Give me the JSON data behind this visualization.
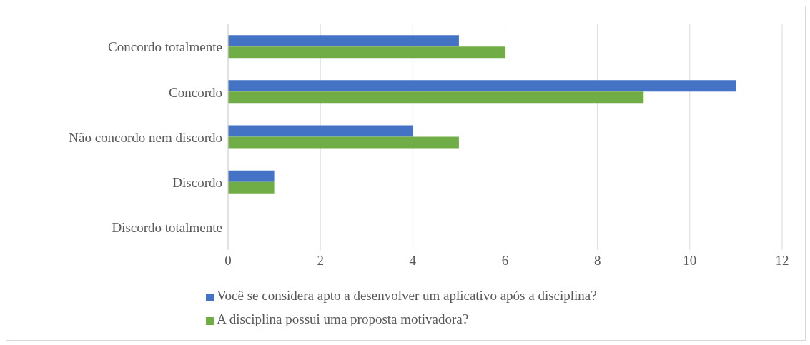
{
  "chart_data": {
    "type": "bar",
    "orientation": "horizontal",
    "categories": [
      "Concordo totalmente",
      "Concordo",
      "Não concordo nem discordo",
      "Discordo",
      "Discordo totalmente"
    ],
    "series": [
      {
        "name": "Você se considera apto a desenvolver um aplicativo após a disciplina?",
        "color": "#4472c4",
        "values": [
          5,
          11,
          4,
          1,
          0
        ]
      },
      {
        "name": "A disciplina possui uma proposta motivadora?",
        "color": "#70ad47",
        "values": [
          6,
          9,
          5,
          1,
          0
        ]
      }
    ],
    "xlim": [
      0,
      12
    ],
    "xticks": [
      0,
      2,
      4,
      6,
      8,
      10,
      12
    ],
    "grid": "x",
    "legend": "bottom"
  }
}
